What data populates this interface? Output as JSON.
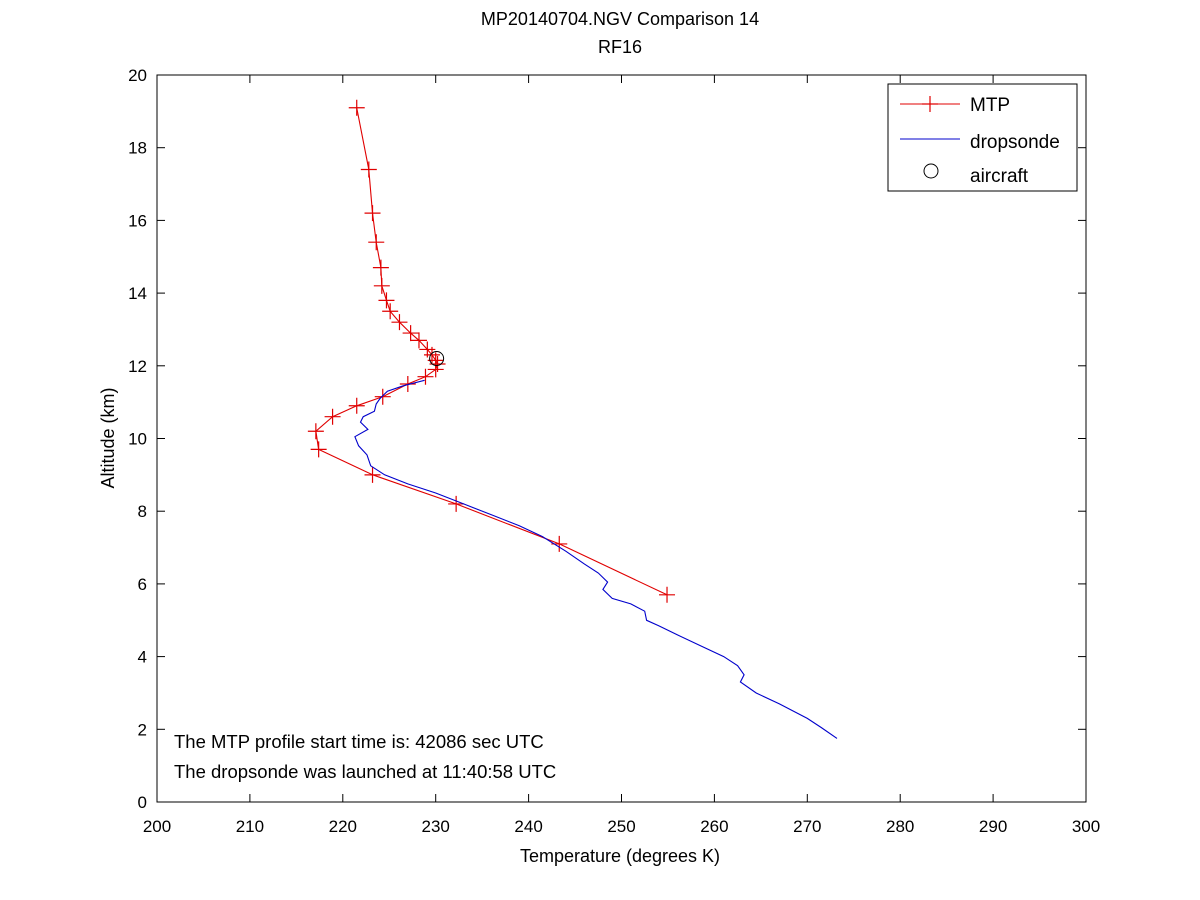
{
  "chart_data": {
    "type": "line",
    "title": "MP20140704.NGV Comparison 14",
    "subtitle": "RF16",
    "xlabel": "Temperature (degrees K)",
    "ylabel": "Altitude (km)",
    "xlim": [
      200,
      300
    ],
    "ylim": [
      0,
      20
    ],
    "x_ticks": [
      200,
      210,
      220,
      230,
      240,
      250,
      260,
      270,
      280,
      290,
      300
    ],
    "y_ticks": [
      0,
      2,
      4,
      6,
      8,
      10,
      12,
      14,
      16,
      18,
      20
    ],
    "grid": false,
    "legend_position": "top-right",
    "legend": [
      "MTP",
      "dropsonde",
      "aircraft"
    ],
    "colors": {
      "mtp": "#e00000",
      "dropsonde": "#0000cc",
      "aircraft": "#000000"
    },
    "series": [
      {
        "name": "MTP",
        "marker": "plus",
        "points": [
          [
            221.5,
            19.1
          ],
          [
            222.8,
            17.4
          ],
          [
            223.2,
            16.2
          ],
          [
            223.6,
            15.4
          ],
          [
            224.1,
            14.7
          ],
          [
            224.2,
            14.2
          ],
          [
            224.7,
            13.8
          ],
          [
            225.1,
            13.5
          ],
          [
            226.1,
            13.2
          ],
          [
            227.3,
            12.9
          ],
          [
            228.2,
            12.7
          ],
          [
            229.1,
            12.45
          ],
          [
            229.6,
            12.3
          ],
          [
            230.0,
            12.15
          ],
          [
            230.2,
            12.05
          ],
          [
            230.0,
            11.9
          ],
          [
            228.9,
            11.7
          ],
          [
            227.0,
            11.5
          ],
          [
            224.3,
            11.15
          ],
          [
            221.5,
            10.9
          ],
          [
            218.9,
            10.6
          ],
          [
            217.1,
            10.2
          ],
          [
            217.4,
            9.7
          ],
          [
            223.2,
            9.0
          ],
          [
            232.2,
            8.2
          ],
          [
            243.3,
            7.1
          ],
          [
            254.9,
            5.7
          ]
        ]
      },
      {
        "name": "dropsonde",
        "marker": "none",
        "points": [
          [
            228.8,
            11.6
          ],
          [
            226.5,
            11.45
          ],
          [
            224.8,
            11.3
          ],
          [
            224.0,
            11.1
          ],
          [
            223.6,
            10.95
          ],
          [
            223.4,
            10.75
          ],
          [
            222.2,
            10.6
          ],
          [
            221.9,
            10.45
          ],
          [
            222.7,
            10.25
          ],
          [
            221.3,
            10.05
          ],
          [
            221.7,
            9.8
          ],
          [
            222.6,
            9.55
          ],
          [
            223.0,
            9.25
          ],
          [
            224.5,
            9.0
          ],
          [
            227.0,
            8.75
          ],
          [
            230.0,
            8.5
          ],
          [
            233.0,
            8.2
          ],
          [
            236.0,
            7.9
          ],
          [
            239.0,
            7.6
          ],
          [
            241.5,
            7.3
          ],
          [
            244.0,
            6.9
          ],
          [
            246.0,
            6.55
          ],
          [
            247.5,
            6.3
          ],
          [
            248.5,
            6.05
          ],
          [
            248.0,
            5.85
          ],
          [
            249.0,
            5.6
          ],
          [
            251.0,
            5.45
          ],
          [
            252.5,
            5.25
          ],
          [
            252.7,
            5.0
          ],
          [
            254.0,
            4.85
          ],
          [
            256.0,
            4.6
          ],
          [
            258.5,
            4.3
          ],
          [
            261.0,
            4.0
          ],
          [
            262.5,
            3.75
          ],
          [
            263.2,
            3.5
          ],
          [
            262.8,
            3.3
          ],
          [
            264.5,
            3.0
          ],
          [
            267.0,
            2.7
          ],
          [
            270.0,
            2.3
          ],
          [
            271.5,
            2.05
          ],
          [
            273.2,
            1.75
          ]
        ]
      },
      {
        "name": "aircraft",
        "marker": "circle",
        "points": [
          [
            230.1,
            12.2
          ]
        ]
      }
    ],
    "annotations": [
      "The MTP profile start time is: 42086 sec UTC",
      "The dropsonde was launched at 11:40:58 UTC"
    ]
  }
}
